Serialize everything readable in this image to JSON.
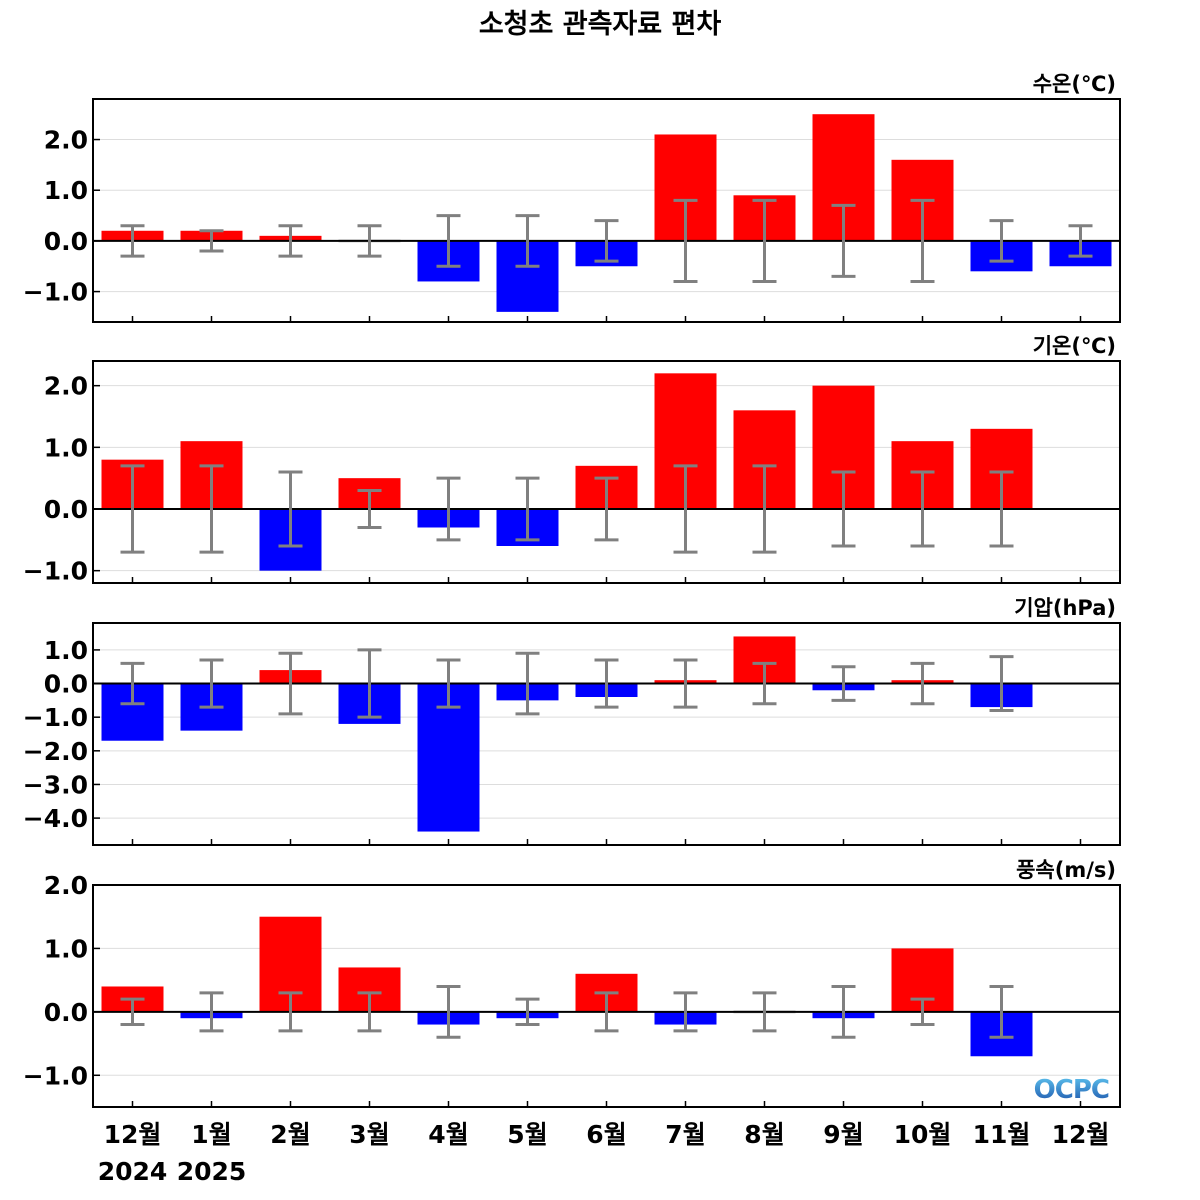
{
  "title": "소청초 관측자료 편차",
  "x_labels": [
    "12월",
    "1월",
    "2월",
    "3월",
    "4월",
    "5월",
    "6월",
    "7월",
    "8월",
    "9월",
    "10월",
    "11월",
    "12월"
  ],
  "year_labels": [
    {
      "text": "2024",
      "index": 0
    },
    {
      "text": "2025",
      "index": 1
    }
  ],
  "logo": "OCPC",
  "colors": {
    "positive": "#ff0000",
    "negative": "#0000ff",
    "errorbar": "#808080",
    "zero_line": "#000000",
    "grid": "#dddddd"
  },
  "chart_data": [
    {
      "type": "bar",
      "label": "수온(℃)",
      "ylim": [
        -1.6,
        2.8
      ],
      "yticks": [
        2.0,
        1.0,
        0.0,
        -1.0
      ],
      "tick_labels": [
        "2.0",
        "1.0",
        "0.0",
        "−1.0"
      ],
      "values": [
        0.2,
        0.2,
        0.1,
        0.0,
        -0.8,
        -1.4,
        -0.5,
        2.1,
        0.9,
        2.5,
        1.6,
        -0.6,
        -0.5
      ],
      "error": [
        0.3,
        0.2,
        0.3,
        0.3,
        0.5,
        0.5,
        0.4,
        0.8,
        0.8,
        0.7,
        0.8,
        0.4,
        0.3
      ]
    },
    {
      "type": "bar",
      "label": "기온(℃)",
      "ylim": [
        -1.2,
        2.4
      ],
      "yticks": [
        2.0,
        1.0,
        0.0,
        -1.0
      ],
      "tick_labels": [
        "2.0",
        "1.0",
        "0.0",
        "−1.0"
      ],
      "values": [
        0.8,
        1.1,
        -1.0,
        0.5,
        -0.3,
        -0.6,
        0.7,
        2.2,
        1.6,
        2.0,
        1.1,
        1.3,
        null
      ],
      "error": [
        0.7,
        0.7,
        0.6,
        0.3,
        0.5,
        0.5,
        0.5,
        0.7,
        0.7,
        0.6,
        0.6,
        0.6,
        null
      ]
    },
    {
      "type": "bar",
      "label": "기압(hPa)",
      "ylim": [
        -4.8,
        1.8
      ],
      "yticks": [
        1.0,
        0.0,
        -1.0,
        -2.0,
        -3.0,
        -4.0
      ],
      "tick_labels": [
        "1.0",
        "0.0",
        "−1.0",
        "−2.0",
        "−3.0",
        "−4.0"
      ],
      "values": [
        -1.7,
        -1.4,
        0.4,
        -1.2,
        -4.4,
        -0.5,
        -0.4,
        0.1,
        1.4,
        -0.2,
        0.1,
        -0.7,
        null
      ],
      "error": [
        0.6,
        0.7,
        0.9,
        1.0,
        0.7,
        0.9,
        0.7,
        0.7,
        0.6,
        0.5,
        0.6,
        0.8,
        null
      ]
    },
    {
      "type": "bar",
      "label": "풍속(m/s)",
      "ylim": [
        -1.5,
        2.0
      ],
      "yticks": [
        2.0,
        1.0,
        0.0,
        -1.0
      ],
      "tick_labels": [
        "2.0",
        "1.0",
        "0.0",
        "−1.0"
      ],
      "values": [
        0.4,
        -0.1,
        1.5,
        0.7,
        -0.2,
        -0.1,
        0.6,
        -0.2,
        0.0,
        -0.1,
        1.0,
        -0.7,
        null
      ],
      "error": [
        0.2,
        0.3,
        0.3,
        0.3,
        0.4,
        0.2,
        0.3,
        0.3,
        0.3,
        0.4,
        0.2,
        0.4,
        null
      ]
    }
  ]
}
